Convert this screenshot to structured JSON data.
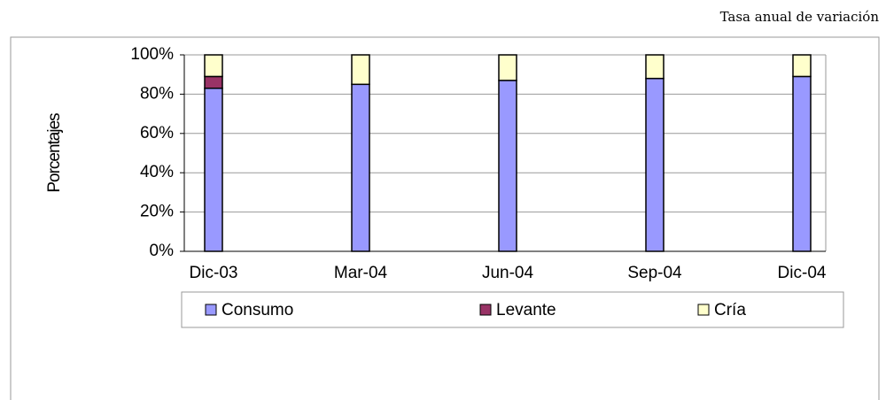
{
  "chart_data": {
    "type": "stacked_bar",
    "title": "Tasa anual de variación",
    "y_label": "Porcentajes",
    "categories": [
      "Dic-03",
      "Mar-04",
      "Jun-04",
      "Sep-04",
      "Dic-04"
    ],
    "series": [
      {
        "name": "Consumo",
        "color": "#9999ff",
        "values": [
          83,
          85,
          87,
          88,
          89
        ]
      },
      {
        "name": "Levante",
        "color": "#993366",
        "values": [
          6,
          0,
          0,
          0,
          0
        ]
      },
      {
        "name": "Cría",
        "color": "#ffffcc",
        "values": [
          11,
          15,
          13,
          12,
          11
        ]
      }
    ],
    "ylim": [
      0,
      100
    ],
    "yticks": [
      {
        "value": 0,
        "label": "0%"
      },
      {
        "value": 20,
        "label": "20%"
      },
      {
        "value": 40,
        "label": "40%"
      },
      {
        "value": 60,
        "label": "60%"
      },
      {
        "value": 80,
        "label": "80%"
      },
      {
        "value": 100,
        "label": "100%"
      }
    ],
    "legend": "bottom"
  }
}
